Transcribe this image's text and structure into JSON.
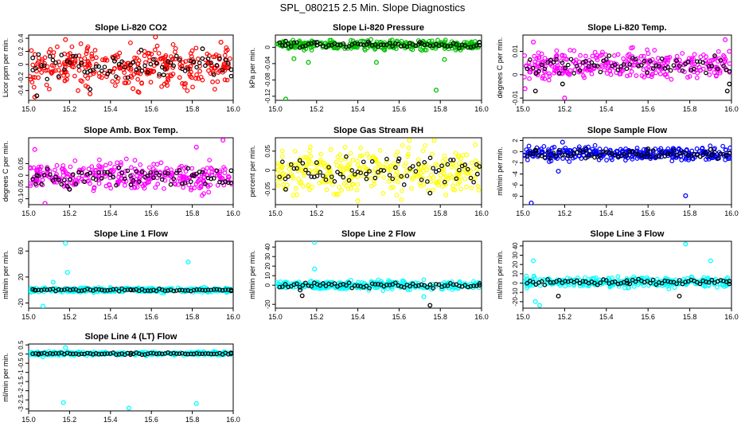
{
  "figure_title": "SPL_080215  2.5 Min. Slope Diagnostics",
  "chart_data": [
    {
      "type": "scatter",
      "title": "Slope Li-820 CO2",
      "ylabel": "Licor ppm per min.",
      "color": "#ff0000",
      "xlim": [
        15.0,
        16.0
      ],
      "ylim": [
        -0.55,
        0.45
      ],
      "xticks": [
        15.0,
        15.2,
        15.4,
        15.6,
        15.8,
        16.0
      ],
      "yticks": [
        -0.4,
        -0.2,
        0.0,
        0.2,
        0.4
      ],
      "band": [
        -0.45,
        0.38
      ],
      "series": [
        {
          "name": "colored",
          "points": [
            [
              15.03,
              -0.5
            ],
            [
              15.18,
              0.38
            ],
            [
              15.51,
              -0.37
            ],
            [
              15.78,
              -0.05
            ],
            [
              15.94,
              0.34
            ],
            [
              15.3,
              -0.45
            ],
            [
              15.62,
              0.42
            ]
          ]
        },
        {
          "name": "black",
          "points": [
            [
              15.02,
              0.1
            ],
            [
              15.04,
              -0.48
            ],
            [
              15.3,
              -0.38
            ],
            [
              15.42,
              0.05
            ],
            [
              15.55,
              0.22
            ],
            [
              15.66,
              -0.16
            ],
            [
              15.85,
              0.24
            ],
            [
              15.99,
              -0.08
            ]
          ]
        }
      ]
    },
    {
      "type": "scatter",
      "title": "Slope Li-820 Pressure",
      "ylabel": "kPa per min.",
      "color": "#00c000",
      "xlim": [
        15.0,
        16.0
      ],
      "ylim": [
        -0.13,
        0.03
      ],
      "xticks": [
        15.0,
        15.2,
        15.4,
        15.6,
        15.8,
        16.0
      ],
      "yticks": [
        -0.12,
        -0.08,
        -0.04,
        0.0
      ],
      "band": [
        -0.01,
        0.02
      ],
      "series": [
        {
          "name": "colored",
          "points": [
            [
              15.05,
              -0.127
            ],
            [
              15.09,
              -0.028
            ],
            [
              15.16,
              -0.037
            ],
            [
              15.49,
              -0.037
            ],
            [
              15.78,
              -0.105
            ],
            [
              15.82,
              -0.03
            ]
          ]
        },
        {
          "name": "black",
          "points": [
            [
              15.05,
              0.015
            ],
            [
              15.2,
              0.012
            ],
            [
              15.45,
              0.013
            ],
            [
              15.7,
              0.012
            ],
            [
              15.99,
              0.012
            ]
          ]
        }
      ]
    },
    {
      "type": "scatter",
      "title": "Slope Li-820 Temp.",
      "ylabel": "degrees C per min.",
      "color": "#ff00ff",
      "xlim": [
        15.0,
        16.0
      ],
      "ylim": [
        -0.011,
        0.017
      ],
      "xticks": [
        15.0,
        15.2,
        15.4,
        15.6,
        15.8,
        16.0
      ],
      "yticks": [
        -0.01,
        0.0,
        0.01
      ],
      "band": [
        -0.004,
        0.012
      ],
      "series": [
        {
          "name": "colored",
          "points": [
            [
              15.2,
              -0.01
            ],
            [
              15.05,
              0.014
            ],
            [
              15.97,
              0.015
            ],
            [
              15.99,
              0.01
            ],
            [
              15.01,
              -0.006
            ]
          ]
        },
        {
          "name": "black",
          "points": [
            [
              15.06,
              -0.007
            ],
            [
              15.19,
              -0.004
            ],
            [
              15.98,
              -0.007
            ],
            [
              15.99,
              -0.004
            ]
          ]
        }
      ]
    },
    {
      "type": "scatter",
      "title": "Slope Amb. Box Temp.",
      "ylabel": "degrees C per min.",
      "color": "#ff00ff",
      "xlim": [
        15.0,
        16.0
      ],
      "ylim": [
        -0.125,
        0.16
      ],
      "xticks": [
        15.0,
        15.2,
        15.4,
        15.6,
        15.8,
        16.0
      ],
      "yticks": [
        -0.1,
        -0.05,
        0.0,
        0.05
      ],
      "band": [
        -0.09,
        0.08
      ],
      "series": [
        {
          "name": "colored",
          "points": [
            [
              15.03,
              0.11
            ],
            [
              15.82,
              0.12
            ],
            [
              15.95,
              0.15
            ],
            [
              15.08,
              -0.12
            ]
          ]
        },
        {
          "name": "black",
          "points": [
            [
              15.04,
              0.0
            ],
            [
              15.2,
              -0.06
            ],
            [
              15.5,
              -0.04
            ],
            [
              15.8,
              0.0
            ],
            [
              15.99,
              0.02
            ]
          ]
        }
      ]
    },
    {
      "type": "scatter",
      "title": "Slope Gas Stream RH",
      "ylabel": "percent per min.",
      "color": "#ffff00",
      "xlim": [
        15.0,
        16.0
      ],
      "ylim": [
        -0.09,
        0.085
      ],
      "xticks": [
        15.0,
        15.2,
        15.4,
        15.6,
        15.8,
        16.0
      ],
      "yticks": [
        -0.05,
        0.0,
        0.05
      ],
      "band": [
        -0.08,
        0.075
      ],
      "series": [
        {
          "name": "colored",
          "points": [
            [
              15.65,
              0.078
            ],
            [
              15.77,
              0.078
            ],
            [
              15.4,
              -0.08
            ]
          ]
        },
        {
          "name": "black",
          "points": [
            [
              15.05,
              -0.05
            ],
            [
              15.2,
              0.02
            ],
            [
              15.44,
              -0.01
            ],
            [
              15.6,
              0.03
            ],
            [
              15.75,
              -0.06
            ],
            [
              15.98,
              -0.01
            ]
          ]
        }
      ]
    },
    {
      "type": "scatter",
      "title": "Slope Sample Flow",
      "ylabel": "ml/min per min.",
      "color": "#0000ff",
      "xlim": [
        15.0,
        16.0
      ],
      "ylim": [
        -9.5,
        2.5
      ],
      "xticks": [
        15.0,
        15.2,
        15.4,
        15.6,
        15.8,
        16.0
      ],
      "yticks": [
        -8,
        -6,
        -4,
        -2,
        0,
        2
      ],
      "band": [
        -2.0,
        1.2
      ],
      "series": [
        {
          "name": "colored",
          "points": [
            [
              15.04,
              -9.2
            ],
            [
              15.19,
              1.7
            ],
            [
              15.17,
              -3.5
            ],
            [
              15.78,
              -7.9
            ]
          ]
        },
        {
          "name": "black",
          "points": [
            [
              15.06,
              0.3
            ],
            [
              15.3,
              0.4
            ],
            [
              15.6,
              0.5
            ],
            [
              15.9,
              0.4
            ]
          ]
        }
      ]
    },
    {
      "type": "scatter",
      "title": "Slope Line 1 Flow",
      "ylabel": "ml/min per min.",
      "color": "#00ffff",
      "xlim": [
        15.0,
        16.0
      ],
      "ylim": [
        -28,
        75
      ],
      "xticks": [
        15.0,
        15.2,
        15.4,
        15.6,
        15.8,
        16.0
      ],
      "yticks": [
        -20,
        20,
        60
      ],
      "band": [
        -5,
        5
      ],
      "series": [
        {
          "name": "colored",
          "points": [
            [
              15.18,
              72
            ],
            [
              15.19,
              27
            ],
            [
              15.78,
              43
            ],
            [
              15.07,
              -25
            ],
            [
              15.12,
              12
            ],
            [
              15.05,
              -3
            ]
          ]
        },
        {
          "name": "black",
          "points": [
            [
              15.03,
              0
            ],
            [
              15.5,
              0
            ],
            [
              15.99,
              0
            ]
          ]
        }
      ]
    },
    {
      "type": "scatter",
      "title": "Slope Line 2 Flow",
      "ylabel": "ml/min per min.",
      "color": "#00ffff",
      "xlim": [
        15.0,
        16.0
      ],
      "ylim": [
        -24,
        46
      ],
      "xticks": [
        15.0,
        15.2,
        15.4,
        15.6,
        15.8,
        16.0
      ],
      "yticks": [
        -20,
        0,
        10,
        20,
        30,
        40
      ],
      "band": [
        -6,
        6
      ],
      "series": [
        {
          "name": "colored",
          "points": [
            [
              15.19,
              45
            ],
            [
              15.19,
              17
            ],
            [
              15.72,
              -12
            ]
          ]
        },
        {
          "name": "black",
          "points": [
            [
              15.12,
              -5
            ],
            [
              15.13,
              -11
            ],
            [
              15.75,
              -21
            ],
            [
              15.99,
              0
            ]
          ]
        }
      ]
    },
    {
      "type": "scatter",
      "title": "Slope Line 3 Flow",
      "ylabel": "ml/min per min.",
      "color": "#00ffff",
      "xlim": [
        15.0,
        16.0
      ],
      "ylim": [
        -27,
        45
      ],
      "xticks": [
        15.0,
        15.2,
        15.4,
        15.6,
        15.8,
        16.0
      ],
      "yticks": [
        -20,
        -10,
        0,
        10,
        20,
        30,
        40
      ],
      "band": [
        -6,
        8
      ],
      "series": [
        {
          "name": "colored",
          "points": [
            [
              15.78,
              42
            ],
            [
              15.06,
              -20
            ],
            [
              15.08,
              -24
            ],
            [
              15.9,
              24
            ],
            [
              15.05,
              24
            ]
          ]
        },
        {
          "name": "black",
          "points": [
            [
              15.17,
              -14
            ],
            [
              15.75,
              -14
            ],
            [
              15.5,
              0
            ],
            [
              15.99,
              2
            ]
          ]
        }
      ]
    },
    {
      "type": "scatter",
      "title": "Slope Line 4 (LT) Flow",
      "ylabel": "ml/min per min.",
      "color": "#00ffff",
      "xlim": [
        15.0,
        16.0
      ],
      "ylim": [
        -3.1,
        0.55
      ],
      "xticks": [
        15.0,
        15.2,
        15.4,
        15.6,
        15.8,
        16.0
      ],
      "yticks": [
        -3.0,
        -2.5,
        -2.0,
        -1.5,
        -1.0,
        -0.5,
        0.0,
        0.5
      ],
      "band": [
        -0.1,
        0.15
      ],
      "series": [
        {
          "name": "colored",
          "points": [
            [
              15.17,
              -2.65
            ],
            [
              15.49,
              -2.95
            ],
            [
              15.82,
              -2.7
            ],
            [
              15.18,
              0.35
            ],
            [
              15.07,
              -0.15
            ]
          ]
        },
        {
          "name": "black",
          "points": [
            [
              15.05,
              0.02
            ],
            [
              15.5,
              0.05
            ],
            [
              15.99,
              0.03
            ]
          ]
        }
      ]
    }
  ]
}
